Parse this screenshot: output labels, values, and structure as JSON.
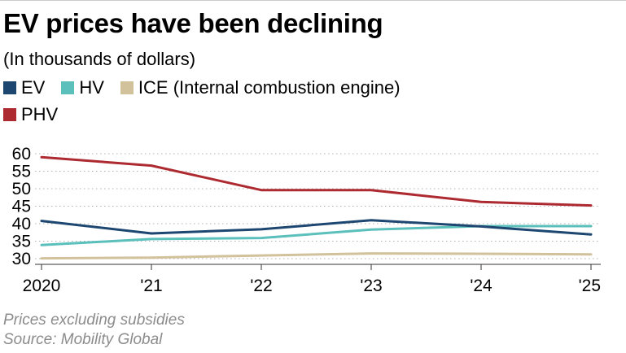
{
  "chart_data": {
    "type": "line",
    "title": "EV prices have been declining",
    "subtitle": "(In thousands of dollars)",
    "categories": [
      "2020",
      "'21",
      "'22",
      "'23",
      "'24",
      "'25"
    ],
    "series": [
      {
        "name": "EV",
        "color": "#1d4770",
        "values": [
          40.8,
          37.2,
          38.4,
          41.0,
          39.2,
          36.9
        ]
      },
      {
        "name": "HV",
        "color": "#5bbfbb",
        "values": [
          33.9,
          35.6,
          35.9,
          38.3,
          39.3,
          39.3
        ]
      },
      {
        "name": "ICE (Internal combustion engine)",
        "color": "#d2c29c",
        "values": [
          30.1,
          30.3,
          30.9,
          31.5,
          31.4,
          31.2
        ]
      },
      {
        "name": "PHV",
        "color": "#ad2a31",
        "values": [
          59.0,
          56.6,
          49.6,
          49.6,
          46.2,
          45.2
        ]
      }
    ],
    "ylim": [
      30,
      60
    ],
    "yticks": [
      30,
      35,
      40,
      45,
      50,
      55,
      60
    ],
    "ygrid": true,
    "legend_position": "top-left",
    "notes": [
      "Prices excluding subsidies",
      "Source: Mobility Global"
    ]
  }
}
